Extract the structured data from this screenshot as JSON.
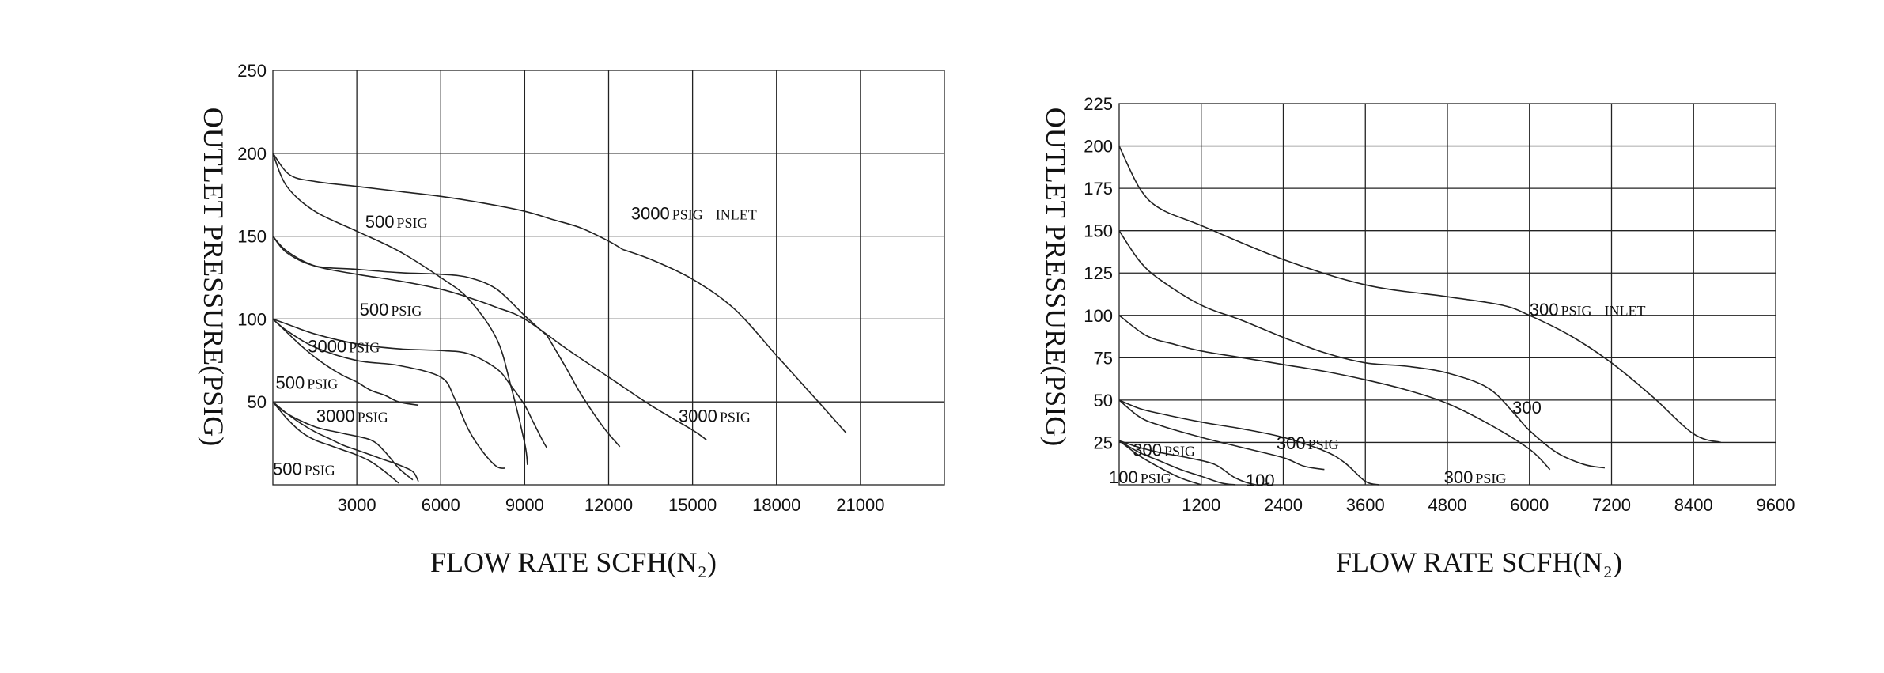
{
  "chart_data": [
    {
      "type": "line",
      "xlabel": "FLOW RATE SCFH(N₂)",
      "ylabel": "OUTLET PRESSURE(PSIG)",
      "xlim": [
        0,
        24000
      ],
      "ylim": [
        0,
        250
      ],
      "x_ticks": [
        "3000",
        "6000",
        "9000",
        "12000",
        "15000",
        "18000",
        "21000"
      ],
      "y_ticks": [
        "250",
        "200",
        "150",
        "100",
        "50"
      ],
      "grid": true,
      "series": [
        {
          "x": [
            0,
            500,
            1500,
            3000,
            4500,
            6000,
            7000,
            8000,
            8500,
            9000,
            9100
          ],
          "y": [
            200,
            180,
            165,
            153,
            141,
            125,
            112,
            88,
            60,
            25,
            12
          ]
        },
        {
          "x": [
            0,
            600,
            1500,
            3000,
            4500,
            6000,
            7500,
            9000,
            10000,
            11000,
            12000,
            12500
          ],
          "y": [
            200,
            187,
            183,
            180,
            177,
            174,
            170,
            165,
            160,
            155,
            147,
            142
          ]
        },
        {
          "x": [
            12500,
            13500,
            15000,
            16500,
            18000,
            19500,
            20500
          ],
          "y": [
            142,
            136,
            124,
            106,
            78,
            50,
            31
          ]
        },
        {
          "x": [
            0,
            500,
            1500,
            3000,
            4500,
            6000,
            7000,
            8000,
            9000,
            9800
          ],
          "y": [
            150,
            140,
            132,
            130,
            128,
            127,
            125,
            118,
            102,
            90
          ]
        },
        {
          "x": [
            9800,
            10500,
            11000,
            11800,
            12400
          ],
          "y": [
            90,
            70,
            55,
            35,
            23
          ]
        },
        {
          "x": [
            0,
            500,
            1500,
            3000,
            4500,
            6000,
            7000,
            8000,
            9000,
            10500,
            12000,
            13500,
            15000,
            15500
          ],
          "y": [
            150,
            141,
            132,
            127,
            123,
            118,
            113,
            107,
            100,
            82,
            65,
            48,
            33,
            27
          ]
        },
        {
          "x": [
            0,
            500,
            1500,
            3000,
            4500,
            6000,
            7000,
            8000,
            8500,
            9000,
            9300,
            9600,
            9800
          ],
          "y": [
            100,
            97,
            91,
            85,
            82,
            81,
            79,
            70,
            60,
            48,
            38,
            28,
            22
          ]
        },
        {
          "x": [
            0,
            500,
            1500,
            3000,
            4500,
            6000,
            6500,
            7000,
            7500,
            8000,
            8300
          ],
          "y": [
            100,
            93,
            83,
            75,
            72,
            65,
            52,
            33,
            20,
            11,
            10
          ]
        },
        {
          "x": [
            0,
            500,
            1000,
            1500,
            2000,
            2500,
            3000,
            3500,
            4000,
            4500,
            5200
          ],
          "y": [
            100,
            92,
            84,
            77,
            71,
            66,
            62,
            57,
            54,
            50,
            48
          ]
        },
        {
          "x": [
            0,
            500,
            1500,
            2500,
            3500,
            4000,
            4500,
            5000
          ],
          "y": [
            50,
            43,
            35,
            31,
            27,
            20,
            10,
            3
          ]
        },
        {
          "x": [
            0,
            500,
            1000,
            1500,
            2000,
            2500,
            3000,
            3500,
            4000,
            4500,
            5000,
            5200
          ],
          "y": [
            50,
            43,
            37,
            32,
            28,
            24,
            21,
            18,
            15,
            12,
            8,
            2
          ]
        },
        {
          "x": [
            0,
            500,
            1000,
            1500,
            2000,
            2500,
            3000,
            3500,
            4000,
            4500
          ],
          "y": [
            50,
            40,
            32,
            27,
            24,
            21,
            18,
            14,
            8,
            1
          ]
        }
      ],
      "labels": [
        {
          "num": "500",
          "unit": "PSIG",
          "extra": "",
          "x": 3300,
          "y": 155
        },
        {
          "num": "3000",
          "unit": "PSIG",
          "extra": "INLET",
          "x": 12800,
          "y": 160
        },
        {
          "num": "500",
          "unit": "PSIG",
          "extra": "",
          "x": 3100,
          "y": 102
        },
        {
          "num": "3000",
          "unit": "PSIG",
          "extra": "",
          "x": 1250,
          "y": 80
        },
        {
          "num": "500",
          "unit": "PSIG",
          "extra": "",
          "x": 100,
          "y": 58
        },
        {
          "num": "3000",
          "unit": "PSIG",
          "extra": "",
          "x": 1550,
          "y": 38
        },
        {
          "num": "3000",
          "unit": "PSIG",
          "extra": "",
          "x": 14500,
          "y": 38
        },
        {
          "num": "500",
          "unit": "PSIG",
          "extra": "",
          "x": 0,
          "y": 6
        }
      ]
    },
    {
      "type": "line",
      "xlabel": "FLOW RATE SCFH(N₂)",
      "ylabel": "OUTLET PRESSURE(PSIG)",
      "xlim": [
        0,
        9600
      ],
      "ylim": [
        0,
        225
      ],
      "x_ticks": [
        "1200",
        "2400",
        "3600",
        "4800",
        "6000",
        "7200",
        "8400",
        "9600"
      ],
      "y_ticks": [
        "225",
        "200",
        "175",
        "150",
        "125",
        "100",
        "75",
        "50",
        "25"
      ],
      "grid": true,
      "series": [
        {
          "x": [
            0,
            300,
            600,
            1200,
            2400,
            3600,
            4800,
            5600,
            6000,
            6600,
            7200,
            7800,
            8400,
            8800
          ],
          "y": [
            200,
            175,
            163,
            153,
            133,
            118,
            111,
            106,
            100,
            88,
            72,
            52,
            30,
            25
          ]
        },
        {
          "x": [
            0,
            300,
            600,
            1200,
            1800,
            2400,
            3000,
            3600,
            4200,
            4800,
            5400,
            5800,
            6000,
            6400,
            6800,
            7100
          ],
          "y": [
            150,
            132,
            121,
            106,
            97,
            87,
            78,
            72,
            70,
            66,
            57,
            41,
            32,
            19,
            12,
            10
          ]
        },
        {
          "x": [
            0,
            400,
            800,
            1200,
            1800,
            2400,
            3000,
            3600,
            4200,
            4800,
            5400,
            6000,
            6300
          ],
          "y": [
            100,
            88,
            83,
            79,
            75,
            71,
            67,
            62,
            56,
            48,
            36,
            21,
            9
          ]
        },
        {
          "x": [
            0,
            300,
            600,
            1200,
            1800,
            2400,
            3000,
            3300,
            3600,
            3800
          ],
          "y": [
            50,
            45,
            42,
            37,
            33,
            28,
            20,
            13,
            2,
            0
          ]
        },
        {
          "x": [
            0,
            300,
            600,
            1200,
            1800,
            2400,
            2700,
            3000
          ],
          "y": [
            50,
            40,
            35,
            28,
            22,
            16,
            11,
            9
          ]
        },
        {
          "x": [
            0,
            300,
            600,
            1000,
            1400,
            1700,
            2000,
            2200
          ],
          "y": [
            26,
            22,
            19,
            16,
            12,
            4,
            0,
            1
          ]
        },
        {
          "x": [
            0,
            300,
            600,
            900,
            1200,
            1500,
            1700
          ],
          "y": [
            26,
            19,
            14,
            9,
            5,
            1,
            0
          ]
        },
        {
          "x": [
            0,
            300,
            600,
            900,
            1200
          ],
          "y": [
            26,
            17,
            10,
            4,
            0
          ]
        }
      ],
      "labels": [
        {
          "num": "300",
          "unit": "PSIG",
          "extra": "INLET",
          "x": 6000,
          "y": 100
        },
        {
          "num": "300",
          "unit": "",
          "extra": "",
          "x": 5750,
          "y": 42
        },
        {
          "num": "300",
          "unit": "PSIG",
          "extra": "",
          "x": 2300,
          "y": 21
        },
        {
          "num": "300",
          "unit": "PSIG",
          "extra": "",
          "x": 200,
          "y": 17
        },
        {
          "num": "100",
          "unit": "PSIG",
          "extra": "",
          "x": -150,
          "y": 1
        },
        {
          "num": "100",
          "unit": "",
          "extra": "",
          "x": 1850,
          "y": -1
        },
        {
          "num": "300",
          "unit": "PSIG",
          "extra": "",
          "x": 4750,
          "y": 1
        }
      ]
    }
  ]
}
